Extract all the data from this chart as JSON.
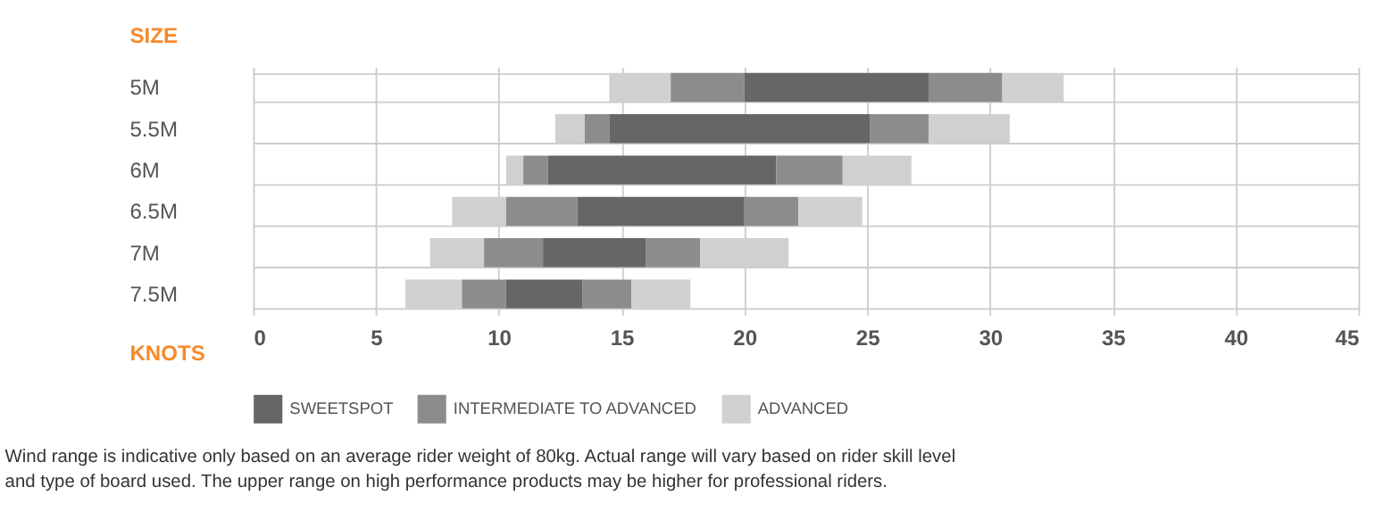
{
  "chart_data": {
    "type": "bar",
    "orientation": "horizontal",
    "ylabel": "SIZE",
    "xlabel": "KNOTS",
    "categories": [
      "5M",
      "5.5M",
      "6M",
      "6.5M",
      "7M",
      "7.5M"
    ],
    "series": [
      {
        "color": "#d0d0d0",
        "base": [
          14.5,
          12.3,
          10.3,
          8.1,
          7.2,
          6.2
        ],
        "values": [
          2.5,
          1.2,
          0.7,
          2.2,
          2.2,
          2.3
        ]
      },
      {
        "color": "#8c8c8c",
        "base": [
          17,
          13.5,
          11,
          10.3,
          9.4,
          8.5
        ],
        "values": [
          3,
          1,
          1,
          2.9,
          2.4,
          1.8
        ]
      },
      {
        "name": "SWEETSPOT",
        "color": "#666666",
        "base": [
          20,
          14.5,
          12,
          13.2,
          11.8,
          10.3
        ],
        "values": [
          7.5,
          10.6,
          9.3,
          6.8,
          4.2,
          3.1
        ]
      },
      {
        "name": "INTERMEDIATE TO ADVANCED",
        "color": "#8c8c8c",
        "base": [
          27.5,
          25.1,
          21.3,
          20,
          16,
          13.4
        ],
        "values": [
          3,
          2.4,
          2.7,
          2.2,
          2.2,
          2
        ]
      },
      {
        "name": "ADVANCED",
        "color": "#d0d0d0",
        "base": [
          30.5,
          27.5,
          24,
          22.2,
          18.2,
          15.4
        ],
        "values": [
          2.5,
          3.3,
          2.8,
          2.6,
          3.6,
          2.4
        ]
      }
    ],
    "xlim": [
      0,
      45
    ],
    "xticks": [
      0,
      5,
      10,
      15,
      20,
      25,
      30,
      35,
      40,
      45
    ],
    "grid": true,
    "legend": "bottom",
    "annotations": [
      "Wind range is indicative only based on an average rider weight of 80kg. Actual range will vary based on rider skill level and type of board used. The upper range on high performance products may be higher for professional riders."
    ]
  }
}
